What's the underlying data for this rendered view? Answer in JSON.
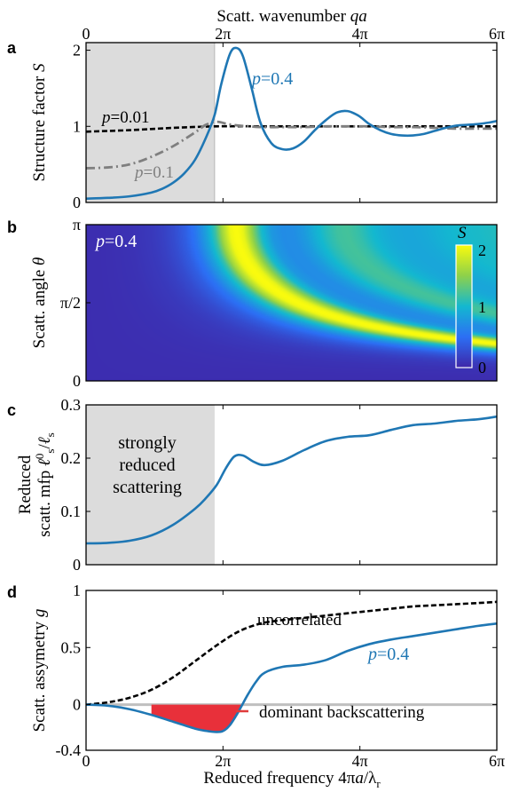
{
  "colors": {
    "blue": "#1f77b4",
    "gray_dashdot": "#7f7f7f",
    "black": "#000000",
    "shade": "#dcdcdc",
    "red_fill": "#e8303a",
    "zero_line": "#bfbfbf",
    "red_text": "#e03c3c"
  },
  "top_axis_label": "Scatt. wavenumber qa",
  "bottom_axis_label": "Reduced frequency 4πa/λr",
  "x_ticks": [
    "0",
    "2π",
    "4π",
    "6π"
  ],
  "chart_data": [
    {
      "panel": "a",
      "type": "line",
      "ylabel": "Structure factor S",
      "xlim": [
        0,
        18.85
      ],
      "ylim": [
        0,
        2.1
      ],
      "y_ticks": [
        "0",
        "1",
        "2"
      ],
      "shaded_x_range": [
        0,
        5.9
      ],
      "series": [
        {
          "name": "p=0.4",
          "style": "solid",
          "x": [
            0,
            1,
            2,
            3,
            3.5,
            4,
            4.5,
            5,
            5.5,
            5.9,
            6.2,
            6.6,
            6.9,
            7.2,
            7.6,
            8,
            8.5,
            9,
            9.5,
            10,
            10.5,
            11,
            11.5,
            12,
            12.5,
            13,
            13.5,
            14,
            14.5,
            15,
            15.5,
            16,
            16.5,
            17,
            17.5,
            18,
            18.5,
            18.85
          ],
          "y": [
            0.05,
            0.06,
            0.08,
            0.13,
            0.18,
            0.26,
            0.38,
            0.56,
            0.85,
            1.15,
            1.55,
            1.95,
            2.03,
            1.92,
            1.5,
            1.05,
            0.78,
            0.7,
            0.71,
            0.8,
            0.95,
            1.08,
            1.18,
            1.2,
            1.14,
            1.03,
            0.95,
            0.9,
            0.88,
            0.88,
            0.9,
            0.94,
            0.98,
            1.01,
            1.02,
            1.03,
            1.05,
            1.07
          ]
        },
        {
          "name": "p=0.1",
          "style": "dashdot",
          "x": [
            0,
            1,
            2,
            3,
            4,
            5,
            5.5,
            6,
            6.5,
            7,
            7.5,
            8,
            9,
            10,
            11,
            12,
            13,
            14,
            15,
            16,
            17,
            18,
            18.85
          ],
          "y": [
            0.45,
            0.46,
            0.5,
            0.6,
            0.74,
            0.92,
            1.02,
            1.06,
            1.03,
            1.01,
            1.0,
            0.99,
            0.99,
            0.99,
            1.0,
            1.0,
            1.0,
            0.99,
            0.99,
            0.98,
            0.97,
            0.97,
            0.97
          ]
        },
        {
          "name": "p=0.01",
          "style": "dashed",
          "x": [
            0,
            2,
            4,
            6,
            8,
            10,
            12,
            14,
            16,
            18.85
          ],
          "y": [
            0.93,
            0.95,
            0.98,
            1.0,
            1.0,
            1.0,
            1.0,
            1.0,
            1.0,
            1.0
          ]
        }
      ]
    },
    {
      "panel": "b",
      "type": "heatmap",
      "annotation": "p=0.4",
      "ylabel": "Scatt. angle θ",
      "y_ticks": [
        "0",
        "π/2",
        "π"
      ],
      "colorbar_label": "S",
      "colorbar_ticks": [
        "0",
        "1",
        "2"
      ],
      "clim": [
        0,
        2
      ]
    },
    {
      "panel": "c",
      "type": "line",
      "ylabel_line1": "Reduced",
      "ylabel_line2": "scatt. mfp ℓ⁰s/ℓs",
      "ylim": [
        0,
        0.3
      ],
      "y_ticks": [
        "0",
        "0.1",
        "0.2",
        "0.3"
      ],
      "shaded_x_range": [
        0,
        5.9
      ],
      "shade_text": [
        "strongly",
        "reduced",
        "scattering"
      ],
      "series": [
        {
          "name": "p=0.4",
          "style": "solid",
          "x": [
            0,
            1,
            2,
            3,
            4,
            5,
            5.5,
            6,
            6.4,
            6.8,
            7.2,
            7.7,
            8.2,
            9,
            10,
            11,
            12,
            13,
            14,
            15,
            16,
            17,
            18,
            18.85
          ],
          "y": [
            0.04,
            0.041,
            0.045,
            0.055,
            0.075,
            0.105,
            0.125,
            0.15,
            0.18,
            0.203,
            0.205,
            0.193,
            0.187,
            0.195,
            0.215,
            0.232,
            0.24,
            0.243,
            0.253,
            0.262,
            0.265,
            0.27,
            0.273,
            0.278
          ]
        }
      ]
    },
    {
      "panel": "d",
      "type": "line",
      "ylabel": "Scatt. assymetry g",
      "ylim": [
        -0.4,
        1
      ],
      "y_ticks": [
        "-0.4",
        "0",
        "0.5",
        "1"
      ],
      "annotations": [
        "uncorrelated",
        "p=0.4",
        "dominant backscattering"
      ],
      "series": [
        {
          "name": "uncorrelated",
          "style": "dashed",
          "x": [
            0,
            1,
            2,
            3,
            4,
            5,
            6,
            7,
            8,
            9,
            10,
            11,
            12,
            13,
            14,
            15,
            16,
            17,
            18,
            18.85
          ],
          "y": [
            0,
            0.02,
            0.06,
            0.13,
            0.24,
            0.38,
            0.52,
            0.64,
            0.71,
            0.74,
            0.76,
            0.78,
            0.8,
            0.82,
            0.84,
            0.86,
            0.87,
            0.88,
            0.89,
            0.9
          ]
        },
        {
          "name": "p=0.4",
          "style": "solid",
          "x": [
            0,
            1,
            2,
            3,
            4,
            5,
            5.5,
            6,
            6.3,
            6.6,
            7,
            7.4,
            7.8,
            8.2,
            9,
            10,
            11,
            12,
            13,
            14,
            15,
            16,
            17,
            18,
            18.85
          ],
          "y": [
            0,
            -0.01,
            -0.04,
            -0.09,
            -0.15,
            -0.21,
            -0.23,
            -0.24,
            -0.23,
            -0.18,
            -0.06,
            0.08,
            0.2,
            0.28,
            0.33,
            0.35,
            0.39,
            0.47,
            0.53,
            0.57,
            0.6,
            0.63,
            0.66,
            0.69,
            0.71
          ]
        }
      ]
    }
  ]
}
